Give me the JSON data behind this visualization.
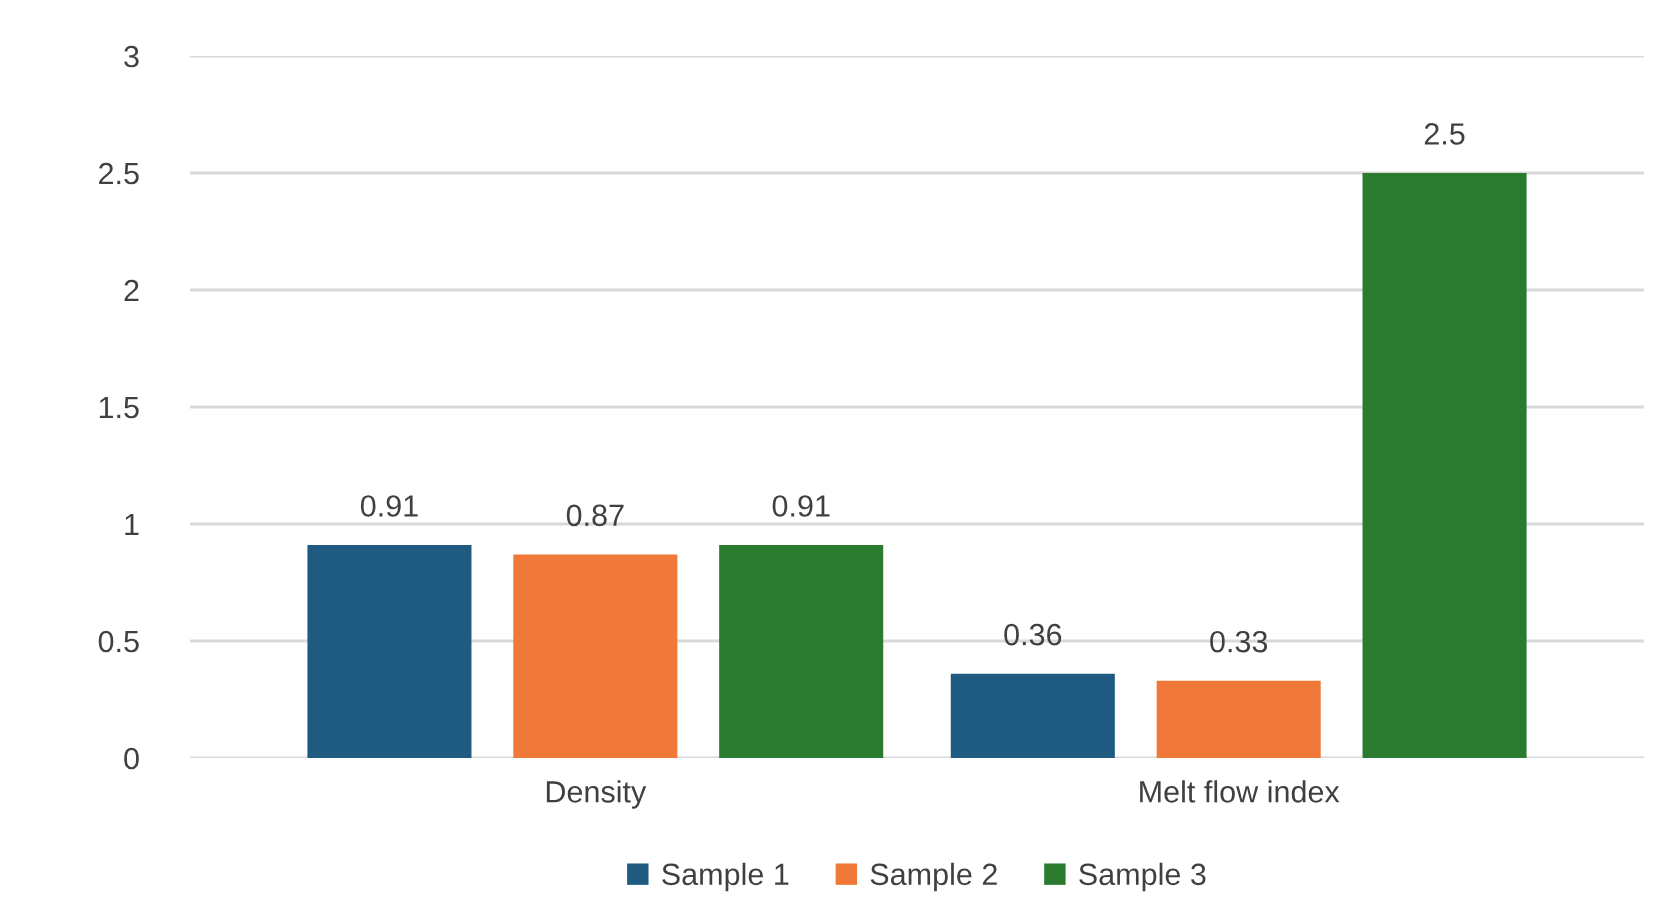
{
  "chart_data": {
    "type": "bar",
    "categories": [
      "Density",
      "Melt flow index"
    ],
    "series": [
      {
        "name": "Sample 1",
        "color": "#1f5b80",
        "values": [
          0.91,
          0.36
        ]
      },
      {
        "name": "Sample 2",
        "color": "#f07838",
        "values": [
          0.87,
          0.33
        ]
      },
      {
        "name": "Sample 3",
        "color": "#2a7a30",
        "values": [
          0.91,
          2.5
        ]
      }
    ],
    "ylim": [
      0,
      3
    ],
    "yticks": [
      0,
      0.5,
      1,
      1.5,
      2,
      2.5,
      3
    ],
    "grid": "y",
    "legend": "bottom",
    "data_labels": true
  }
}
